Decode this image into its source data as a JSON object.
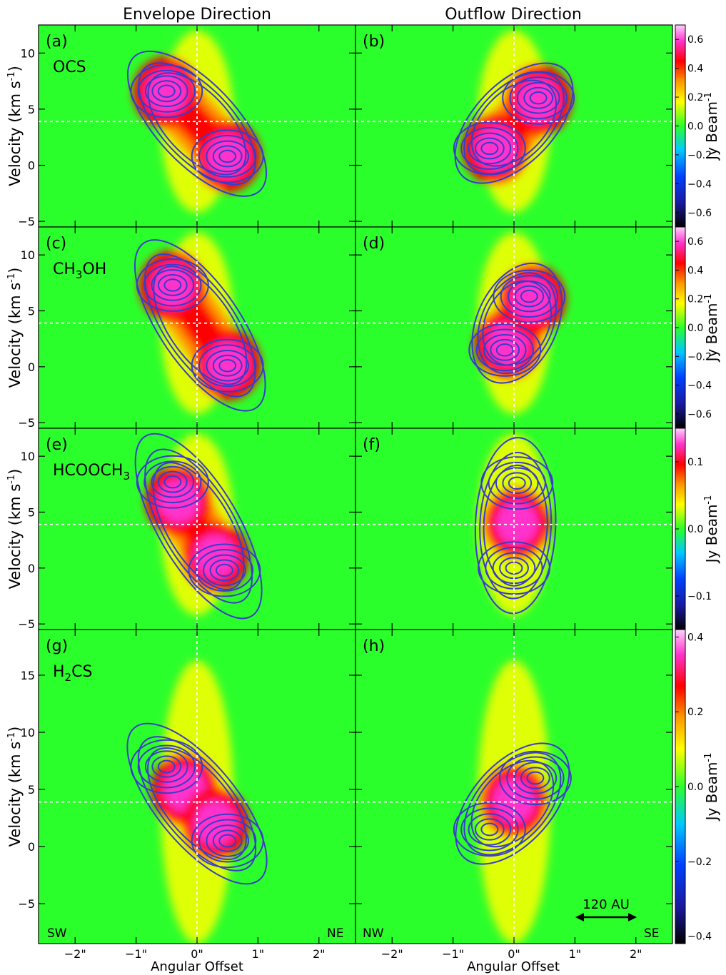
{
  "figure": {
    "column_titles": [
      "Envelope Direction",
      "Outflow Direction"
    ],
    "xlabel": "Angular Offset",
    "ylabel": "Velocity (km s",
    "ylabel_sup": "-1",
    "ylabel_close": ")",
    "colorbar_label": "Jy Beam",
    "colorbar_label_sup": "-1",
    "scale_bar_label": "120 AU",
    "corner_labels": {
      "left_bottom_left": "SW",
      "left_bottom_right": "NE",
      "right_bottom_left": "NW",
      "right_bottom_right": "SE"
    }
  },
  "colors": {
    "background": "#2bff2b",
    "contour": "#3a3cc8",
    "ref_line": "#ffffff",
    "colormap": [
      "#000000",
      "#1a1aa0",
      "#0040ff",
      "#00c8ff",
      "#2bff2b",
      "#ffff00",
      "#ff9900",
      "#ff0000",
      "#ff33cc",
      "#ffd0ff"
    ]
  },
  "chart_data": [
    {
      "type": "heatmap",
      "panel": "(a)",
      "molecule": "OCS",
      "xlim": [
        -2.6,
        2.6
      ],
      "ylim": [
        -5.5,
        12.5
      ],
      "xticks": [
        "-2\"",
        "-1\"",
        "0\"",
        "1\"",
        "2\""
      ],
      "yticks": [
        -5,
        0,
        5,
        10
      ],
      "colorbar_ticks": [
        -0.6,
        -0.4,
        -0.2,
        0.0,
        0.2,
        0.4,
        0.6
      ],
      "colorbar_range": [
        -0.7,
        0.7
      ],
      "systemic_velocity": 3.9,
      "emission_peaks": [
        {
          "x": -0.5,
          "y": 6.5
        },
        {
          "x": 0.5,
          "y": 0.8
        }
      ],
      "contour_peaks": [
        {
          "x": -0.5,
          "y": 6.6
        },
        {
          "x": 0.5,
          "y": 0.8
        }
      ]
    },
    {
      "type": "heatmap",
      "panel": "(b)",
      "molecule": "",
      "xlim": [
        -2.6,
        2.6
      ],
      "ylim": [
        -5.5,
        12.5
      ],
      "xticks": [
        "-2\"",
        "-1\"",
        "0\"",
        "1\"",
        "2\""
      ],
      "yticks": [
        -5,
        0,
        5,
        10
      ],
      "colorbar_ticks": [
        -0.6,
        -0.4,
        -0.2,
        0.0,
        0.2,
        0.4,
        0.6
      ],
      "colorbar_range": [
        -0.7,
        0.7
      ],
      "systemic_velocity": 3.9,
      "emission_peaks": [
        {
          "x": -0.3,
          "y": 1.5
        },
        {
          "x": 0.4,
          "y": 5.8
        }
      ],
      "contour_peaks": [
        {
          "x": -0.4,
          "y": 1.5
        },
        {
          "x": 0.4,
          "y": 6.0
        }
      ]
    },
    {
      "type": "heatmap",
      "panel": "(c)",
      "molecule": "CH3OH",
      "xlim": [
        -2.6,
        2.6
      ],
      "ylim": [
        -5.5,
        12.5
      ],
      "xticks": [
        "-2\"",
        "-1\"",
        "0\"",
        "1\"",
        "2\""
      ],
      "yticks": [
        -5,
        0,
        5,
        10
      ],
      "colorbar_ticks": [
        -0.6,
        -0.4,
        -0.2,
        0.0,
        0.2,
        0.4,
        0.6
      ],
      "colorbar_range": [
        -0.7,
        0.7
      ],
      "systemic_velocity": 3.9,
      "emission_peaks": [
        {
          "x": -0.4,
          "y": 7.2
        },
        {
          "x": 0.5,
          "y": 0.2
        }
      ],
      "contour_peaks": [
        {
          "x": -0.4,
          "y": 7.3
        },
        {
          "x": 0.5,
          "y": 0.1
        }
      ]
    },
    {
      "type": "heatmap",
      "panel": "(d)",
      "molecule": "",
      "xlim": [
        -2.6,
        2.6
      ],
      "ylim": [
        -5.5,
        12.5
      ],
      "xticks": [
        "-2\"",
        "-1\"",
        "0\"",
        "1\"",
        "2\""
      ],
      "yticks": [
        -5,
        0,
        5,
        10
      ],
      "colorbar_ticks": [
        -0.6,
        -0.4,
        -0.2,
        0.0,
        0.2,
        0.4,
        0.6
      ],
      "colorbar_range": [
        -0.7,
        0.7
      ],
      "systemic_velocity": 3.9,
      "emission_peaks": [
        {
          "x": -0.1,
          "y": 2.0
        },
        {
          "x": 0.3,
          "y": 6.0
        }
      ],
      "contour_peaks": [
        {
          "x": -0.15,
          "y": 1.5
        },
        {
          "x": 0.25,
          "y": 6.3
        }
      ]
    },
    {
      "type": "heatmap",
      "panel": "(e)",
      "molecule": "HCOOCH3",
      "xlim": [
        -2.6,
        2.6
      ],
      "ylim": [
        -5.5,
        12.5
      ],
      "xticks": [
        "-2\"",
        "-1\"",
        "0\"",
        "1\"",
        "2\""
      ],
      "yticks": [
        -5,
        0,
        5,
        10
      ],
      "colorbar_ticks": [
        -0.1,
        0.0,
        0.1
      ],
      "colorbar_range": [
        -0.15,
        0.15
      ],
      "systemic_velocity": 3.9,
      "emission_peaks": [
        {
          "x": -0.3,
          "y": 6.0
        },
        {
          "x": 0.3,
          "y": 1.0
        }
      ],
      "contour_peaks": [
        {
          "x": -0.4,
          "y": 7.7
        },
        {
          "x": 0.45,
          "y": -0.2
        }
      ]
    },
    {
      "type": "heatmap",
      "panel": "(f)",
      "molecule": "",
      "xlim": [
        -2.6,
        2.6
      ],
      "ylim": [
        -5.5,
        12.5
      ],
      "xticks": [
        "-2\"",
        "-1\"",
        "0\"",
        "1\"",
        "2\""
      ],
      "yticks": [
        -5,
        0,
        5,
        10
      ],
      "colorbar_ticks": [
        -0.1,
        0.0,
        0.1
      ],
      "colorbar_range": [
        -0.15,
        0.15
      ],
      "systemic_velocity": 3.9,
      "emission_peaks": [
        {
          "x": 0.05,
          "y": 4.0
        }
      ],
      "contour_peaks": [
        {
          "x": 0.05,
          "y": 7.6
        },
        {
          "x": 0.0,
          "y": 0.0
        }
      ]
    },
    {
      "type": "heatmap",
      "panel": "(g)",
      "molecule": "H2CS",
      "xlim": [
        -2.6,
        2.6
      ],
      "ylim": [
        -8.5,
        19.0
      ],
      "xticks": [
        "-2\"",
        "-1\"",
        "0\"",
        "1\"",
        "2\""
      ],
      "yticks": [
        -5,
        0,
        5,
        10,
        15
      ],
      "colorbar_ticks": [
        -0.4,
        -0.2,
        0.0,
        0.2,
        0.4
      ],
      "colorbar_range": [
        -0.42,
        0.42
      ],
      "systemic_velocity": 3.9,
      "emission_peaks": [
        {
          "x": -0.2,
          "y": 5.0
        },
        {
          "x": 0.3,
          "y": 2.0
        }
      ],
      "contour_peaks": [
        {
          "x": -0.5,
          "y": 7.0
        },
        {
          "x": 0.5,
          "y": 0.5
        }
      ]
    },
    {
      "type": "heatmap",
      "panel": "(h)",
      "molecule": "",
      "xlim": [
        -2.6,
        2.6
      ],
      "ylim": [
        -8.5,
        19.0
      ],
      "xticks": [
        "-2\"",
        "-1\"",
        "0\"",
        "1\"",
        "2\""
      ],
      "yticks": [
        -5,
        0,
        5,
        10,
        15
      ],
      "colorbar_ticks": [
        -0.4,
        -0.2,
        0.0,
        0.2,
        0.4
      ],
      "colorbar_range": [
        -0.42,
        0.42
      ],
      "systemic_velocity": 3.9,
      "emission_peaks": [
        {
          "x": 0.0,
          "y": 4.0
        }
      ],
      "contour_peaks": [
        {
          "x": -0.4,
          "y": 1.5
        },
        {
          "x": 0.35,
          "y": 6.0
        }
      ]
    }
  ]
}
